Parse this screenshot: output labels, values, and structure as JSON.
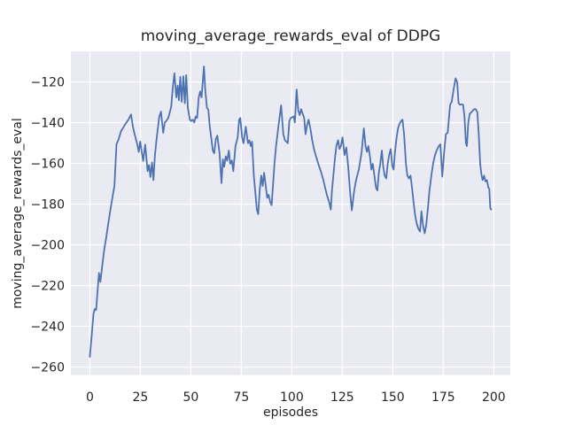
{
  "chart_data": {
    "type": "line",
    "title": "moving_average_rewards_eval of DDPG",
    "xlabel": "episodes",
    "ylabel": "moving_average_rewards_eval",
    "x_ticks": [
      0,
      25,
      50,
      75,
      100,
      125,
      150,
      175,
      200
    ],
    "x_tick_labels": [
      "0",
      "25",
      "50",
      "75",
      "100",
      "125",
      "150",
      "175",
      "200"
    ],
    "y_ticks": [
      -120,
      -140,
      -160,
      -180,
      -200,
      -220,
      -240,
      -260
    ],
    "y_tick_labels": [
      "−120",
      "−140",
      "−160",
      "−180",
      "−200",
      "−220",
      "−240",
      "−260"
    ],
    "xlim": [
      -9.4,
      208.2
    ],
    "ylim": [
      -263.9,
      -105.0
    ],
    "grid": true,
    "legend": null,
    "colors": {
      "line": "#4C72B0",
      "axes_background": "#EAEAF2",
      "grid": "#FFFFFF",
      "text": "#262626",
      "figure_background": "#FFFFFF"
    },
    "series": [
      {
        "name": "moving_average_rewards_eval",
        "points": [
          [
            0,
            -255
          ],
          [
            1,
            -243.5
          ],
          [
            1.8,
            -234
          ],
          [
            2.4,
            -231.5
          ],
          [
            3.1,
            -232
          ],
          [
            4.5,
            -213.8
          ],
          [
            5.2,
            -218.2
          ],
          [
            6.2,
            -209.5
          ],
          [
            7.1,
            -202.5
          ],
          [
            8.1,
            -196.4
          ],
          [
            9.2,
            -189
          ],
          [
            10.3,
            -182
          ],
          [
            11.2,
            -176.5
          ],
          [
            12.2,
            -171
          ],
          [
            13.2,
            -150.5
          ],
          [
            14.2,
            -148.3
          ],
          [
            15.4,
            -144.3
          ],
          [
            16.5,
            -142.5
          ],
          [
            17.6,
            -140.7
          ],
          [
            19.1,
            -138.5
          ],
          [
            20.4,
            -136
          ],
          [
            21.3,
            -142
          ],
          [
            22,
            -145
          ],
          [
            23.5,
            -150.8
          ],
          [
            24.2,
            -154.4
          ],
          [
            24.9,
            -149.3
          ],
          [
            26.4,
            -158.8
          ],
          [
            27.4,
            -150.8
          ],
          [
            28.6,
            -163.8
          ],
          [
            29.3,
            -160.9
          ],
          [
            30,
            -166.7
          ],
          [
            30.8,
            -159.5
          ],
          [
            31.5,
            -168.2
          ],
          [
            32.2,
            -156.6
          ],
          [
            33,
            -148.6
          ],
          [
            33.7,
            -142.8
          ],
          [
            34.4,
            -137
          ],
          [
            35.2,
            -134.6
          ],
          [
            36.3,
            -145
          ],
          [
            37.1,
            -139.9
          ],
          [
            37.8,
            -139.2
          ],
          [
            38.8,
            -137.7
          ],
          [
            39.6,
            -134.9
          ],
          [
            40.3,
            -132
          ],
          [
            41,
            -123.3
          ],
          [
            41.9,
            -115.8
          ],
          [
            42.8,
            -127.6
          ],
          [
            43.5,
            -121.8
          ],
          [
            44.1,
            -129
          ],
          [
            44.8,
            -117.5
          ],
          [
            45.5,
            -129.8
          ],
          [
            46.3,
            -117.2
          ],
          [
            47,
            -130.5
          ],
          [
            47.7,
            -116.7
          ],
          [
            48.5,
            -132.7
          ],
          [
            49.5,
            -138.5
          ],
          [
            50.2,
            -139.2
          ],
          [
            51,
            -138.5
          ],
          [
            51.7,
            -139.9
          ],
          [
            52.4,
            -137
          ],
          [
            53.1,
            -137.7
          ],
          [
            53.9,
            -127.6
          ],
          [
            54.6,
            -124.7
          ],
          [
            55.3,
            -127.6
          ],
          [
            56.5,
            -112.4
          ],
          [
            57.2,
            -124.7
          ],
          [
            58,
            -132.7
          ],
          [
            58.7,
            -133.8
          ],
          [
            59.4,
            -142.1
          ],
          [
            60.2,
            -147.9
          ],
          [
            60.9,
            -153.7
          ],
          [
            61.6,
            -155.1
          ],
          [
            62.4,
            -147.9
          ],
          [
            63.1,
            -146.4
          ],
          [
            64.2,
            -155
          ],
          [
            65.2,
            -169.7
          ],
          [
            65.9,
            -158
          ],
          [
            66.5,
            -161.7
          ],
          [
            67.3,
            -156.6
          ],
          [
            68,
            -158.6
          ],
          [
            68.8,
            -153.7
          ],
          [
            69.5,
            -160.2
          ],
          [
            70.3,
            -158.6
          ],
          [
            71,
            -163.8
          ],
          [
            72.1,
            -151.5
          ],
          [
            73.2,
            -147.2
          ],
          [
            73.9,
            -138.5
          ],
          [
            74.5,
            -137.7
          ],
          [
            75.4,
            -147.2
          ],
          [
            76.1,
            -150.1
          ],
          [
            77.2,
            -142
          ],
          [
            78.3,
            -150.1
          ],
          [
            79,
            -148.7
          ],
          [
            79.7,
            -151.5
          ],
          [
            80.3,
            -149.4
          ],
          [
            81.2,
            -166
          ],
          [
            82,
            -174.7
          ],
          [
            82.7,
            -182.7
          ],
          [
            83.4,
            -184.9
          ],
          [
            84.1,
            -173.3
          ],
          [
            84.9,
            -166
          ],
          [
            85.6,
            -171.1
          ],
          [
            86.3,
            -164.6
          ],
          [
            87.8,
            -176.9
          ],
          [
            88.5,
            -175.4
          ],
          [
            89.3,
            -179.1
          ],
          [
            90,
            -180.5
          ],
          [
            91.4,
            -160.2
          ],
          [
            92.2,
            -151.5
          ],
          [
            92.9,
            -145.7
          ],
          [
            93.6,
            -139.9
          ],
          [
            94.7,
            -131.5
          ],
          [
            95.8,
            -145.7
          ],
          [
            96.6,
            -148.6
          ],
          [
            98,
            -150.1
          ],
          [
            98.8,
            -139.2
          ],
          [
            99.5,
            -137.7
          ],
          [
            101,
            -137
          ],
          [
            101.5,
            -139.9
          ],
          [
            102.4,
            -123.7
          ],
          [
            103.2,
            -134.1
          ],
          [
            103.9,
            -136.3
          ],
          [
            104.6,
            -133.4
          ],
          [
            106.1,
            -137.7
          ],
          [
            106.8,
            -145.7
          ],
          [
            107.5,
            -141.4
          ],
          [
            108.3,
            -138.5
          ],
          [
            109.2,
            -142.8
          ],
          [
            110.1,
            -148.6
          ],
          [
            111,
            -153
          ],
          [
            112,
            -156.5
          ],
          [
            113.2,
            -160.5
          ],
          [
            114.4,
            -164
          ],
          [
            115.6,
            -168
          ],
          [
            116.5,
            -172
          ],
          [
            117.5,
            -176
          ],
          [
            118.5,
            -179
          ],
          [
            119.3,
            -182.7
          ],
          [
            119.9,
            -173.3
          ],
          [
            120.7,
            -164.6
          ],
          [
            121.4,
            -157.3
          ],
          [
            122.1,
            -151.5
          ],
          [
            122.9,
            -148.6
          ],
          [
            123.6,
            -152.9
          ],
          [
            124.3,
            -151.5
          ],
          [
            125.1,
            -147.2
          ],
          [
            126.1,
            -155.9
          ],
          [
            127,
            -152.2
          ],
          [
            128,
            -162.4
          ],
          [
            128.8,
            -173.3
          ],
          [
            129.7,
            -183.1
          ],
          [
            130.9,
            -173.3
          ],
          [
            131.7,
            -168.9
          ],
          [
            132.4,
            -166
          ],
          [
            133.2,
            -163.1
          ],
          [
            133.9,
            -158.8
          ],
          [
            134.6,
            -154.4
          ],
          [
            135.7,
            -142.8
          ],
          [
            136.5,
            -151.5
          ],
          [
            137.2,
            -154.4
          ],
          [
            137.9,
            -151.5
          ],
          [
            138.7,
            -156.6
          ],
          [
            139.4,
            -163.1
          ],
          [
            140.1,
            -160.2
          ],
          [
            140.9,
            -166
          ],
          [
            141.7,
            -171.8
          ],
          [
            142.4,
            -173.3
          ],
          [
            143.1,
            -164.6
          ],
          [
            143.8,
            -160.2
          ],
          [
            144.6,
            -153.7
          ],
          [
            145.3,
            -161.7
          ],
          [
            146,
            -166
          ],
          [
            146.8,
            -167.4
          ],
          [
            147.5,
            -160.2
          ],
          [
            148.2,
            -155.9
          ],
          [
            149,
            -153
          ],
          [
            149.7,
            -161
          ],
          [
            150.4,
            -163.1
          ],
          [
            151.1,
            -154.4
          ],
          [
            151.9,
            -147.2
          ],
          [
            152.6,
            -142.8
          ],
          [
            153.3,
            -140.6
          ],
          [
            154.1,
            -139.2
          ],
          [
            154.8,
            -138.5
          ],
          [
            155.6,
            -145.7
          ],
          [
            156.5,
            -160.2
          ],
          [
            157.2,
            -166
          ],
          [
            158,
            -167.4
          ],
          [
            158.8,
            -166
          ],
          [
            159.5,
            -171.8
          ],
          [
            160.3,
            -179
          ],
          [
            161,
            -184.9
          ],
          [
            161.8,
            -189.2
          ],
          [
            162.6,
            -192
          ],
          [
            163.5,
            -193.5
          ],
          [
            164.2,
            -183.5
          ],
          [
            165,
            -190.5
          ],
          [
            165.8,
            -194.3
          ],
          [
            166.6,
            -190
          ],
          [
            167.4,
            -182
          ],
          [
            168.2,
            -173.3
          ],
          [
            169.1,
            -166
          ],
          [
            170,
            -160
          ],
          [
            170.9,
            -156
          ],
          [
            171.8,
            -153.5
          ],
          [
            172.8,
            -151.5
          ],
          [
            173.6,
            -150.6
          ],
          [
            174.5,
            -166.5
          ],
          [
            175.4,
            -155
          ],
          [
            176.3,
            -145.7
          ],
          [
            177.2,
            -145
          ],
          [
            178.4,
            -131.2
          ],
          [
            179.2,
            -129.7
          ],
          [
            180.1,
            -124
          ],
          [
            181.1,
            -118.2
          ],
          [
            181.9,
            -120.3
          ],
          [
            182.6,
            -130.4
          ],
          [
            183.3,
            -131.2
          ],
          [
            184.1,
            -131
          ],
          [
            184.8,
            -131.2
          ],
          [
            185.5,
            -137
          ],
          [
            186.2,
            -150.1
          ],
          [
            186.7,
            -151.5
          ],
          [
            187.4,
            -139.9
          ],
          [
            188.1,
            -135.6
          ],
          [
            188.9,
            -134.9
          ],
          [
            189.6,
            -134.1
          ],
          [
            190.4,
            -133.4
          ],
          [
            191.1,
            -133.4
          ],
          [
            191.9,
            -134.9
          ],
          [
            192.6,
            -145.7
          ],
          [
            193.3,
            -160.2
          ],
          [
            194,
            -166
          ],
          [
            194.5,
            -168.2
          ],
          [
            195.2,
            -166
          ],
          [
            195.9,
            -168.9
          ],
          [
            196.6,
            -168.2
          ],
          [
            197.3,
            -171.8
          ],
          [
            197.8,
            -172.5
          ],
          [
            198.3,
            -182
          ],
          [
            198.7,
            -182.7
          ]
        ]
      }
    ]
  }
}
